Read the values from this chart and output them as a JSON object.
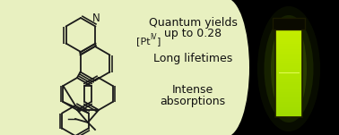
{
  "bg_color": "#e8f0c0",
  "text_color": "#111111",
  "line1": "Quantum yields",
  "line2": "up to 0.28",
  "line3": "Long lifetimes",
  "line4": "Intense",
  "line5": "absorptions",
  "font_size_main": 9.0,
  "fig_width": 3.78,
  "fig_height": 1.51,
  "dpi": 100
}
